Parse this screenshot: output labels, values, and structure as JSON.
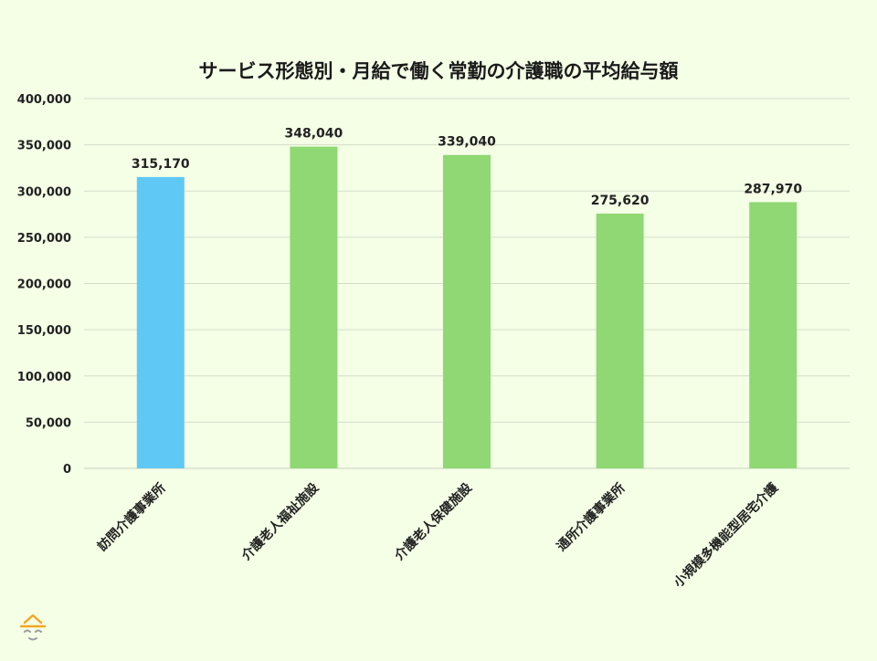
{
  "chart_data": {
    "type": "bar",
    "title": "サービス形態別・月給で働く常勤の介護職の平均給与額",
    "categories": [
      "訪問介護事業所",
      "介護老人福祉施設",
      "介護老人保健施設",
      "通所介護事業所",
      "小規模多機能型居宅介護"
    ],
    "values": [
      315170,
      348040,
      339040,
      275620,
      287970
    ],
    "value_labels": [
      "315,170",
      "348,040",
      "339,040",
      "275,620",
      "287,970"
    ],
    "bar_colors": [
      "#60c8f5",
      "#8fd873",
      "#8fd873",
      "#8fd873",
      "#8fd873"
    ],
    "ylim": [
      0,
      400000
    ],
    "yticks": [
      0,
      50000,
      100000,
      150000,
      200000,
      250000,
      300000,
      350000,
      400000
    ],
    "ytick_labels": [
      "0",
      "50,000",
      "100,000",
      "150,000",
      "200,000",
      "250,000",
      "300,000",
      "350,000",
      "400,000"
    ],
    "grid": true,
    "xlabel": "",
    "ylabel": ""
  },
  "logo": {
    "name": "face-logo-icon",
    "color": "#f5a623"
  },
  "background_color": "#f4ffe6"
}
